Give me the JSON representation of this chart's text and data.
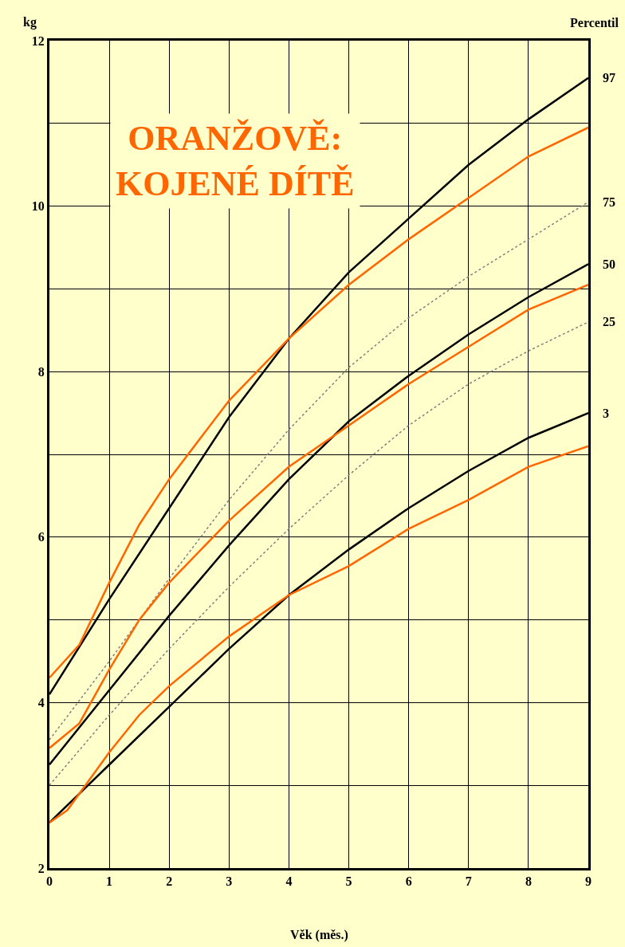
{
  "chart_data": {
    "type": "line",
    "title": "ORANŽOVĚ:\nKOJENÉ DÍTĚ",
    "xlabel": "Věk (měs.)",
    "ylabel": "kg",
    "legend_title": "Percentil",
    "legend": false,
    "grid": true,
    "marker": "none",
    "xlim": [
      0,
      9
    ],
    "xticks": [
      0,
      1,
      2,
      3,
      4,
      5,
      6,
      7,
      8,
      9
    ],
    "ylim": [
      2,
      12
    ],
    "yticks": [
      2,
      {
        "value": 3,
        "label": null
      },
      4,
      {
        "value": 5,
        "label": null
      },
      6,
      {
        "value": 7,
        "label": null
      },
      8,
      {
        "value": 9,
        "label": null
      },
      10,
      {
        "value": 11,
        "label": null
      },
      12
    ],
    "series": [
      {
        "name": "97",
        "color": "#000000",
        "line_style": "solid",
        "x": [
          0,
          1,
          2,
          3,
          4,
          5,
          6,
          7,
          8,
          9
        ],
        "values": [
          4.1,
          5.25,
          6.35,
          7.45,
          8.4,
          9.2,
          9.85,
          10.5,
          11.05,
          11.55
        ]
      },
      {
        "name": "75",
        "color": "#808080",
        "line_style": "dotted",
        "x": [
          0,
          1,
          2,
          3,
          4,
          5,
          6,
          7,
          8,
          9
        ],
        "values": [
          3.55,
          4.5,
          5.5,
          6.45,
          7.3,
          8.05,
          8.65,
          9.15,
          9.6,
          10.05
        ]
      },
      {
        "name": "50",
        "color": "#000000",
        "line_style": "solid",
        "x": [
          0,
          1,
          2,
          3,
          4,
          5,
          6,
          7,
          8,
          9
        ],
        "values": [
          3.25,
          4.15,
          5.05,
          5.9,
          6.7,
          7.4,
          7.95,
          8.45,
          8.9,
          9.3
        ]
      },
      {
        "name": "25",
        "color": "#808080",
        "line_style": "dotted",
        "x": [
          0,
          1,
          2,
          3,
          4,
          5,
          6,
          7,
          8,
          9
        ],
        "values": [
          3.0,
          3.85,
          4.65,
          5.4,
          6.1,
          6.75,
          7.35,
          7.85,
          8.25,
          8.6
        ]
      },
      {
        "name": "3",
        "color": "#000000",
        "line_style": "solid",
        "x": [
          0,
          0.5,
          1,
          2,
          3,
          4,
          5,
          6,
          7,
          8,
          9
        ],
        "values": [
          2.55,
          2.9,
          3.25,
          3.95,
          4.65,
          5.3,
          5.85,
          6.35,
          6.8,
          7.2,
          7.5
        ]
      },
      {
        "color": "#ff6600",
        "line_style": "solid",
        "x": [
          0,
          0.5,
          1,
          1.5,
          2,
          3,
          4,
          5,
          6,
          7,
          8,
          9
        ],
        "values": [
          4.3,
          4.7,
          5.45,
          6.15,
          6.7,
          7.65,
          8.4,
          9.05,
          9.6,
          10.1,
          10.6,
          10.95
        ]
      },
      {
        "color": "#ff6600",
        "line_style": "solid",
        "x": [
          0,
          0.5,
          1,
          1.5,
          2,
          3,
          4,
          5,
          6,
          7,
          8,
          9
        ],
        "values": [
          3.45,
          3.75,
          4.4,
          5.0,
          5.45,
          6.2,
          6.85,
          7.35,
          7.85,
          8.3,
          8.75,
          9.05
        ]
      },
      {
        "color": "#ff6600",
        "line_style": "solid",
        "x": [
          0,
          0.3,
          0.6,
          1,
          1.5,
          2,
          3,
          4,
          5,
          6,
          7,
          8,
          9
        ],
        "values": [
          2.55,
          2.7,
          3.0,
          3.4,
          3.85,
          4.2,
          4.8,
          5.3,
          5.65,
          6.1,
          6.45,
          6.85,
          7.1
        ]
      }
    ]
  }
}
